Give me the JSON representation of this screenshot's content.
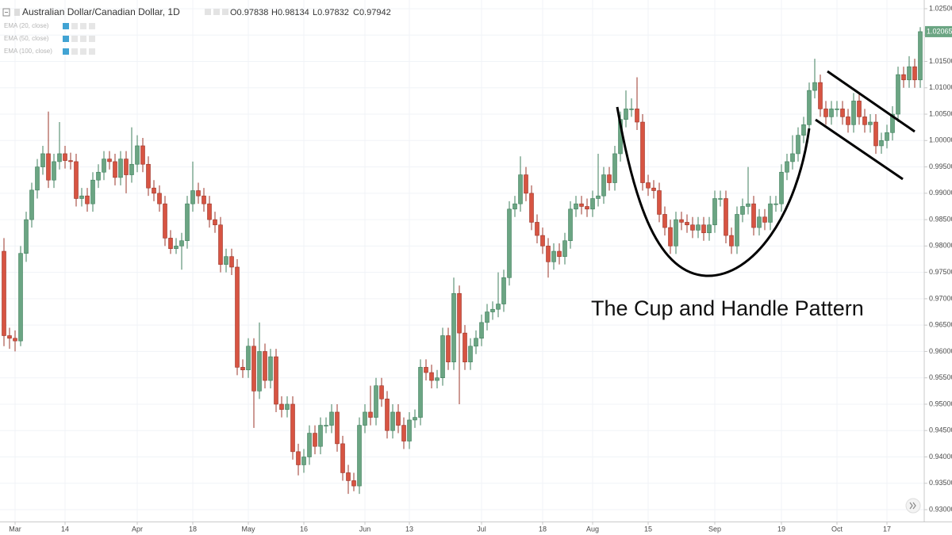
{
  "chart_data": {
    "type": "candlestick",
    "title": "Australian Dollar/Canadian Dollar, 1D",
    "ohlc_legend": [
      "O0.97838",
      "H0.98134",
      "L0.97832",
      "C0.97942"
    ],
    "indicators": [
      "EMA (20, close)",
      "EMA (50, close)",
      "EMA (100, close)"
    ],
    "annotation": "The Cup and Handle Pattern",
    "last_price_label": "1.02065",
    "up_color": "#6ba583",
    "down_color": "#d75442",
    "grid": true,
    "ylim": [
      0.92775,
      1.02665
    ],
    "yticks": [
      {
        "value": 0.93,
        "label": "0.93000"
      },
      {
        "value": 0.935,
        "label": "0.93500"
      },
      {
        "value": 0.94,
        "label": "0.94000"
      },
      {
        "value": 0.945,
        "label": "0.94500"
      },
      {
        "value": 0.95,
        "label": "0.95000"
      },
      {
        "value": 0.955,
        "label": "0.95500"
      },
      {
        "value": 0.96,
        "label": "0.96000"
      },
      {
        "value": 0.965,
        "label": "0.96500"
      },
      {
        "value": 0.97,
        "label": "0.97000"
      },
      {
        "value": 0.975,
        "label": "0.97500"
      },
      {
        "value": 0.98,
        "label": "0.98000"
      },
      {
        "value": 0.985,
        "label": "0.98500"
      },
      {
        "value": 0.99,
        "label": "0.99000"
      },
      {
        "value": 0.995,
        "label": "0.99500"
      },
      {
        "value": 1.0,
        "label": "1.00000"
      },
      {
        "value": 1.005,
        "label": "1.00500"
      },
      {
        "value": 1.01,
        "label": "1.01000"
      },
      {
        "value": 1.015,
        "label": "1.01500"
      },
      {
        "value": 1.02,
        "label": "1.02000"
      },
      {
        "value": 1.025,
        "label": "1.02500"
      }
    ],
    "categories": [
      null,
      null,
      "Mar",
      null,
      null,
      null,
      null,
      null,
      null,
      null,
      null,
      "14",
      null,
      null,
      null,
      null,
      null,
      null,
      null,
      null,
      null,
      null,
      null,
      null,
      "Apr",
      null,
      null,
      null,
      null,
      null,
      null,
      null,
      null,
      null,
      "18",
      null,
      null,
      null,
      null,
      null,
      null,
      null,
      null,
      null,
      "May",
      null,
      null,
      null,
      null,
      null,
      null,
      null,
      null,
      null,
      "16",
      null,
      null,
      null,
      null,
      null,
      null,
      null,
      null,
      null,
      null,
      "Jun",
      null,
      null,
      null,
      null,
      null,
      null,
      null,
      "13",
      null,
      null,
      null,
      null,
      null,
      null,
      null,
      null,
      null,
      null,
      null,
      null,
      "Jul",
      null,
      null,
      null,
      null,
      null,
      null,
      null,
      null,
      null,
      null,
      "18",
      null,
      null,
      null,
      null,
      null,
      null,
      null,
      null,
      "Aug",
      null,
      null,
      null,
      null,
      null,
      null,
      null,
      null,
      null,
      "15",
      null,
      null,
      null,
      null,
      null,
      null,
      null,
      null,
      null,
      null,
      null,
      "Sep",
      null,
      null,
      null,
      null,
      null,
      null,
      null,
      null,
      null,
      null,
      null,
      "19",
      null,
      null,
      null,
      null,
      null,
      null,
      null,
      null,
      null,
      "Oct",
      null,
      null,
      null,
      null,
      null,
      null,
      null,
      null,
      "17",
      null,
      null,
      null,
      null,
      null,
      null
    ],
    "open": [
      0.979,
      0.963,
      0.9625,
      0.962,
      0.9786,
      0.985,
      0.9906,
      0.995,
      0.9975,
      0.9925,
      0.996,
      0.9975,
      0.9962,
      0.996,
      0.989,
      0.9895,
      0.988,
      0.9925,
      0.994,
      0.9965,
      0.996,
      0.993,
      0.9965,
      0.9935,
      0.9955,
      0.999,
      0.9955,
      0.991,
      0.99,
      0.988,
      0.9815,
      0.9795,
      0.98,
      0.981,
      0.988,
      0.9905,
      0.9895,
      0.988,
      0.985,
      0.984,
      0.9765,
      0.978,
      0.976,
      0.957,
      0.9565,
      0.961,
      0.9525,
      0.96,
      0.9545,
      0.959,
      0.95,
      0.949,
      0.95,
      0.941,
      0.9385,
      0.94,
      0.9445,
      0.942,
      0.946,
      0.946,
      0.9485,
      0.9425,
      0.937,
      0.9355,
      0.9345,
      0.946,
      0.9485,
      0.9475,
      0.9535,
      0.951,
      0.945,
      0.9485,
      0.946,
      0.943,
      0.947,
      0.9475,
      0.957,
      0.956,
      0.9545,
      0.955,
      0.963,
      0.958,
      0.971,
      0.9635,
      0.958,
      0.961,
      0.9625,
      0.9655,
      0.9675,
      0.968,
      0.969,
      0.974,
      0.987,
      0.988,
      0.9935,
      0.99,
      0.9845,
      0.982,
      0.98,
      0.977,
      0.979,
      0.978,
      0.981,
      0.987,
      0.988,
      0.9875,
      0.987,
      0.989,
      0.9895,
      0.9935,
      0.992,
      0.9975,
      1.004,
      1.006,
      1.006,
      1.0035,
      0.992,
      0.991,
      0.9905,
      0.986,
      0.9835,
      0.98,
      0.985,
      0.9845,
      0.984,
      0.983,
      0.984,
      0.9825,
      0.984,
      0.989,
      0.989,
      0.982,
      0.98,
      0.986,
      0.9875,
      0.988,
      0.9835,
      0.9855,
      0.9845,
      0.988,
      0.988,
      0.994,
      0.996,
      0.9975,
      1.001,
      1.003,
      1.0095,
      1.011,
      1.006,
      1.0045,
      1.006,
      1.006,
      1.0045,
      1.003,
      1.0075,
      1.0045,
      1.003,
      1.0035,
      0.999,
      1.0,
      1.0015,
      1.005,
      1.0125,
      1.0115,
      1.014,
      1.0115
    ],
    "high": [
      0.9815,
      0.9645,
      0.964,
      0.98,
      0.9865,
      0.992,
      0.9965,
      0.999,
      1.0055,
      0.9975,
      1.0035,
      0.999,
      0.9977,
      0.9975,
      0.991,
      0.991,
      0.994,
      0.9955,
      0.998,
      0.998,
      0.9975,
      0.998,
      0.998,
      1.0025,
      1.001,
      1.0005,
      0.997,
      0.9925,
      0.9915,
      0.9895,
      0.983,
      0.9815,
      0.9825,
      0.9895,
      0.996,
      0.992,
      0.991,
      0.9895,
      0.9865,
      0.9855,
      0.9795,
      0.9795,
      0.9775,
      0.9585,
      0.9625,
      0.9625,
      0.9655,
      0.9615,
      0.9605,
      0.9605,
      0.9515,
      0.9515,
      0.9515,
      0.9425,
      0.9415,
      0.946,
      0.946,
      0.9475,
      0.9475,
      0.95,
      0.95,
      0.944,
      0.9385,
      0.937,
      0.9475,
      0.95,
      0.9535,
      0.955,
      0.955,
      0.9525,
      0.95,
      0.95,
      0.9475,
      0.9485,
      0.949,
      0.9585,
      0.9585,
      0.9575,
      0.9565,
      0.9645,
      0.9645,
      0.974,
      0.9725,
      0.965,
      0.9625,
      0.964,
      0.967,
      0.969,
      0.9695,
      0.975,
      0.9755,
      0.9885,
      0.9895,
      0.997,
      0.995,
      0.9915,
      0.986,
      0.9835,
      0.9815,
      0.9805,
      0.9805,
      0.9825,
      0.9885,
      0.9895,
      0.9895,
      0.989,
      0.9905,
      0.9975,
      0.995,
      0.995,
      0.999,
      1.0055,
      1.0095,
      1.008,
      1.012,
      1.005,
      0.9935,
      0.9925,
      0.992,
      0.9875,
      0.985,
      0.9865,
      0.9865,
      0.986,
      0.9855,
      0.9855,
      0.9855,
      0.9855,
      0.9905,
      0.9905,
      0.9905,
      0.9835,
      0.9875,
      0.989,
      0.995,
      0.9895,
      0.987,
      0.987,
      0.9895,
      0.9895,
      0.9955,
      0.9975,
      1.001,
      1.0025,
      1.0045,
      1.011,
      1.0155,
      1.0125,
      1.0075,
      1.0075,
      1.0075,
      1.0075,
      1.006,
      1.009,
      1.009,
      1.006,
      1.005,
      1.005,
      1.0015,
      1.003,
      1.0065,
      1.014,
      1.014,
      1.016,
      1.0155,
      1.0215
    ],
    "low": [
      0.961,
      0.9605,
      0.96,
      0.961,
      0.977,
      0.9835,
      0.989,
      0.9935,
      0.991,
      0.991,
      0.9945,
      0.9947,
      0.9945,
      0.9875,
      0.9875,
      0.9865,
      0.9865,
      0.991,
      0.9925,
      0.9945,
      0.9915,
      0.9915,
      0.99,
      0.992,
      0.994,
      0.994,
      0.9895,
      0.9885,
      0.9865,
      0.98,
      0.9785,
      0.9785,
      0.9755,
      0.9795,
      0.9865,
      0.988,
      0.9865,
      0.9835,
      0.9825,
      0.975,
      0.975,
      0.9745,
      0.9555,
      0.955,
      0.955,
      0.9455,
      0.951,
      0.953,
      0.953,
      0.9485,
      0.9475,
      0.9475,
      0.9395,
      0.9365,
      0.937,
      0.9385,
      0.9405,
      0.9405,
      0.9445,
      0.9445,
      0.941,
      0.9355,
      0.933,
      0.9335,
      0.933,
      0.9445,
      0.946,
      0.946,
      0.9495,
      0.9435,
      0.9435,
      0.9445,
      0.9415,
      0.9415,
      0.9455,
      0.946,
      0.9545,
      0.953,
      0.953,
      0.9535,
      0.9565,
      0.9565,
      0.95,
      0.9565,
      0.9565,
      0.9595,
      0.961,
      0.964,
      0.966,
      0.9665,
      0.9675,
      0.9725,
      0.9855,
      0.9865,
      0.9885,
      0.983,
      0.9805,
      0.9785,
      0.974,
      0.9755,
      0.9765,
      0.9765,
      0.9795,
      0.9855,
      0.986,
      0.9855,
      0.9855,
      0.9875,
      0.988,
      0.9905,
      0.9905,
      0.996,
      1.0025,
      1.0045,
      1.002,
      0.9905,
      0.9895,
      0.989,
      0.9845,
      0.982,
      0.9785,
      0.9785,
      0.983,
      0.9825,
      0.9815,
      0.9815,
      0.981,
      0.981,
      0.9825,
      0.9875,
      0.9805,
      0.9785,
      0.9785,
      0.9845,
      0.986,
      0.982,
      0.982,
      0.983,
      0.983,
      0.9865,
      0.9865,
      0.9925,
      0.9945,
      0.996,
      0.9995,
      1.0015,
      1.008,
      1.0045,
      1.003,
      1.003,
      1.0045,
      1.003,
      1.0015,
      1.0015,
      1.003,
      1.0015,
      1.0015,
      0.9975,
      0.9975,
      0.9985,
      1.0,
      1.0035,
      1.01,
      1.01,
      1.01,
      1.01
    ],
    "close": [
      0.963,
      0.9625,
      0.962,
      0.9786,
      0.985,
      0.9906,
      0.995,
      0.9975,
      0.9925,
      0.996,
      0.9975,
      0.9962,
      0.996,
      0.989,
      0.9895,
      0.988,
      0.9925,
      0.994,
      0.9965,
      0.996,
      0.993,
      0.9965,
      0.9935,
      0.9955,
      0.999,
      0.9955,
      0.991,
      0.99,
      0.988,
      0.9815,
      0.9795,
      0.98,
      0.981,
      0.988,
      0.9905,
      0.9895,
      0.988,
      0.985,
      0.984,
      0.9765,
      0.978,
      0.976,
      0.957,
      0.9565,
      0.961,
      0.9525,
      0.96,
      0.9545,
      0.959,
      0.95,
      0.949,
      0.95,
      0.941,
      0.9385,
      0.94,
      0.9445,
      0.942,
      0.946,
      0.946,
      0.9485,
      0.9425,
      0.937,
      0.9355,
      0.9345,
      0.946,
      0.9485,
      0.9475,
      0.9535,
      0.951,
      0.945,
      0.9485,
      0.946,
      0.943,
      0.947,
      0.9475,
      0.957,
      0.956,
      0.9545,
      0.955,
      0.963,
      0.958,
      0.971,
      0.9635,
      0.958,
      0.961,
      0.9625,
      0.9655,
      0.9675,
      0.968,
      0.969,
      0.974,
      0.987,
      0.988,
      0.9935,
      0.99,
      0.9845,
      0.982,
      0.98,
      0.977,
      0.979,
      0.978,
      0.981,
      0.987,
      0.988,
      0.9875,
      0.987,
      0.989,
      0.9895,
      0.9935,
      0.992,
      0.9975,
      1.004,
      1.006,
      1.006,
      1.0035,
      0.992,
      0.991,
      0.9905,
      0.986,
      0.9835,
      0.98,
      0.985,
      0.9845,
      0.984,
      0.983,
      0.984,
      0.9825,
      0.984,
      0.989,
      0.989,
      0.982,
      0.98,
      0.986,
      0.9875,
      0.988,
      0.9835,
      0.9855,
      0.9845,
      0.988,
      0.988,
      0.994,
      0.996,
      0.9975,
      1.001,
      1.003,
      1.0095,
      1.011,
      1.006,
      1.0045,
      1.006,
      1.006,
      1.0045,
      1.003,
      1.0075,
      1.0045,
      1.003,
      1.0035,
      0.999,
      1.0,
      1.0015,
      1.005,
      1.0125,
      1.0115,
      1.014,
      1.0115,
      1.02065
    ]
  }
}
